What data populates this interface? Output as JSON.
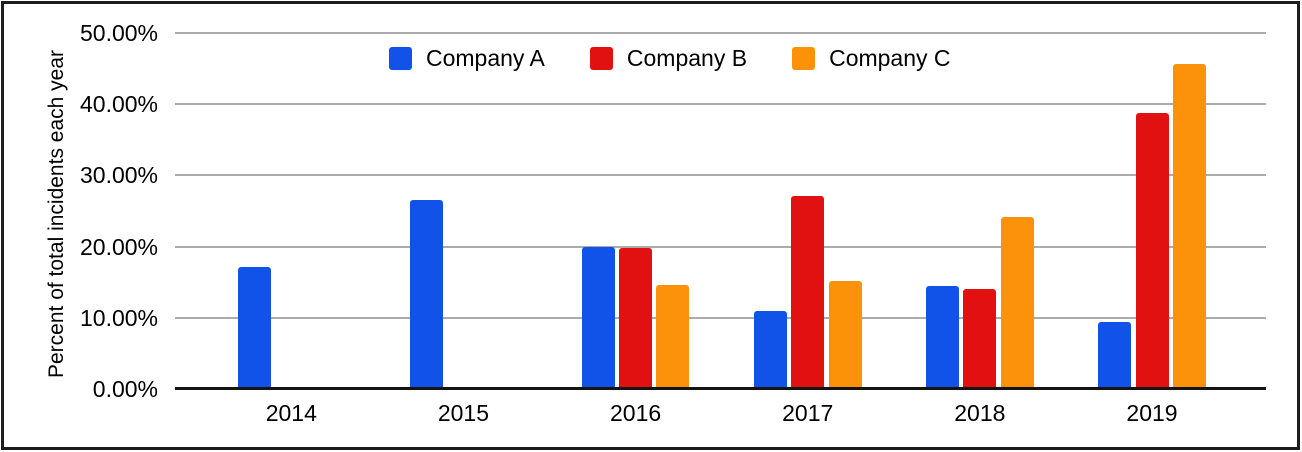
{
  "chart_data": {
    "type": "bar",
    "ylabel": "Percent of total incidents each year",
    "categories": [
      "2014",
      "2015",
      "2016",
      "2017",
      "2018",
      "2019"
    ],
    "series": [
      {
        "name": "Company A",
        "color": "#1152e8",
        "values": [
          17.2,
          26.6,
          20.0,
          11.0,
          14.4,
          9.4
        ]
      },
      {
        "name": "Company B",
        "color": "#e11111",
        "values": [
          null,
          null,
          19.8,
          27.1,
          14.1,
          38.7
        ]
      },
      {
        "name": "Company C",
        "color": "#fb920a",
        "values": [
          null,
          null,
          14.6,
          15.2,
          24.2,
          45.7
        ]
      }
    ],
    "y_ticks": [
      "0.00%",
      "10.00%",
      "20.00%",
      "30.00%",
      "40.00%",
      "50.00%"
    ],
    "ylim": [
      0,
      50
    ],
    "grid": true,
    "legend_position": "top-center"
  }
}
